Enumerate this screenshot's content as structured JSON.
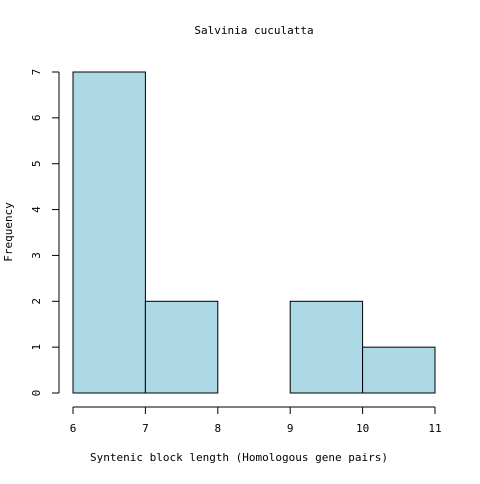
{
  "chart_data": {
    "type": "bar",
    "title": "Salvinia cuculatta",
    "xlabel": "Syntenic block length (Homologous gene pairs)",
    "ylabel": "Frequency",
    "bins": [
      {
        "start": 6,
        "end": 7,
        "count": 7
      },
      {
        "start": 7,
        "end": 8,
        "count": 2
      },
      {
        "start": 8,
        "end": 9,
        "count": 0
      },
      {
        "start": 9,
        "end": 10,
        "count": 2
      },
      {
        "start": 10,
        "end": 11,
        "count": 1
      }
    ],
    "xlim": [
      6,
      11
    ],
    "ylim": [
      0,
      7
    ],
    "x_ticks": [
      "6",
      "7",
      "8",
      "9",
      "10",
      "11"
    ],
    "y_ticks": [
      "0",
      "1",
      "2",
      "3",
      "4",
      "5",
      "6",
      "7"
    ],
    "grid": false,
    "legend": "none",
    "bar_fill": "#add8e6",
    "bar_stroke": "#000000"
  }
}
